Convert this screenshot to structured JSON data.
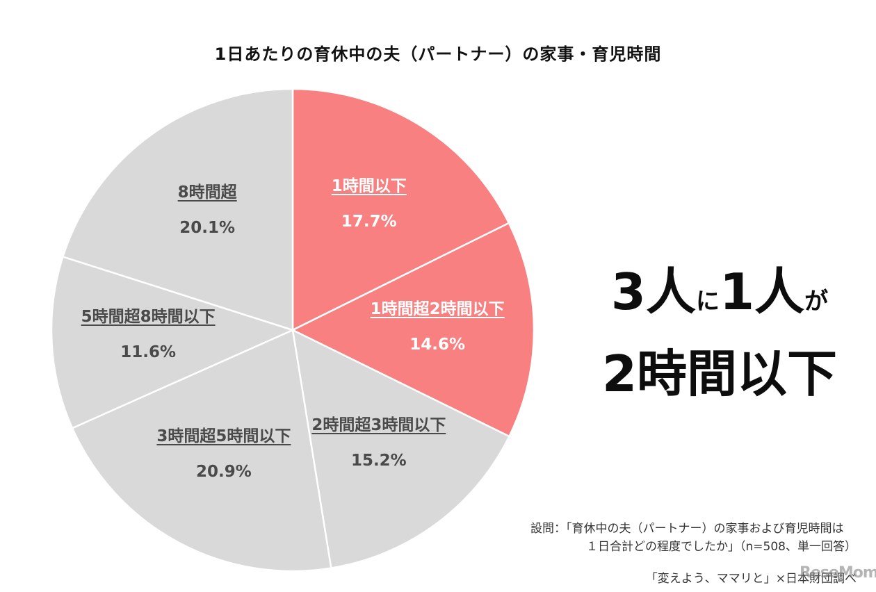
{
  "chart_data": {
    "type": "pie",
    "title": "1日あたりの育休中の夫（パートナー）の家事・育児時間",
    "slices": [
      {
        "label": "1時間以下",
        "value": 17.7,
        "display": "17.7%",
        "color": "#f98080",
        "highlight": true
      },
      {
        "label": "1時間超2時間以下",
        "value": 14.6,
        "display": "14.6%",
        "color": "#f98080",
        "highlight": true
      },
      {
        "label": "2時間超3時間以下",
        "value": 15.2,
        "display": "15.2%",
        "color": "#d9d9d9",
        "highlight": false
      },
      {
        "label": "3時間超5時間以下",
        "value": 20.9,
        "display": "20.9%",
        "color": "#d9d9d9",
        "highlight": false
      },
      {
        "label": "5時間超8時間以下",
        "value": 11.6,
        "display": "11.6%",
        "color": "#d9d9d9",
        "highlight": false
      },
      {
        "label": "8時間超",
        "value": 20.1,
        "display": "20.1%",
        "color": "#d9d9d9",
        "highlight": false
      }
    ]
  },
  "headline": {
    "part1": "3人",
    "part2": "に",
    "part3": "1人",
    "part4": "が",
    "line2": "2時間以下"
  },
  "note": {
    "line1": "設問：「育休中の夫（パートナー）の家事および育児時間は",
    "line2": "１日合計どの程度でしたか」（n=508、単一回答）"
  },
  "credit": "「変えよう、ママリと」×日本財団調べ",
  "watermark": "ReseMom"
}
